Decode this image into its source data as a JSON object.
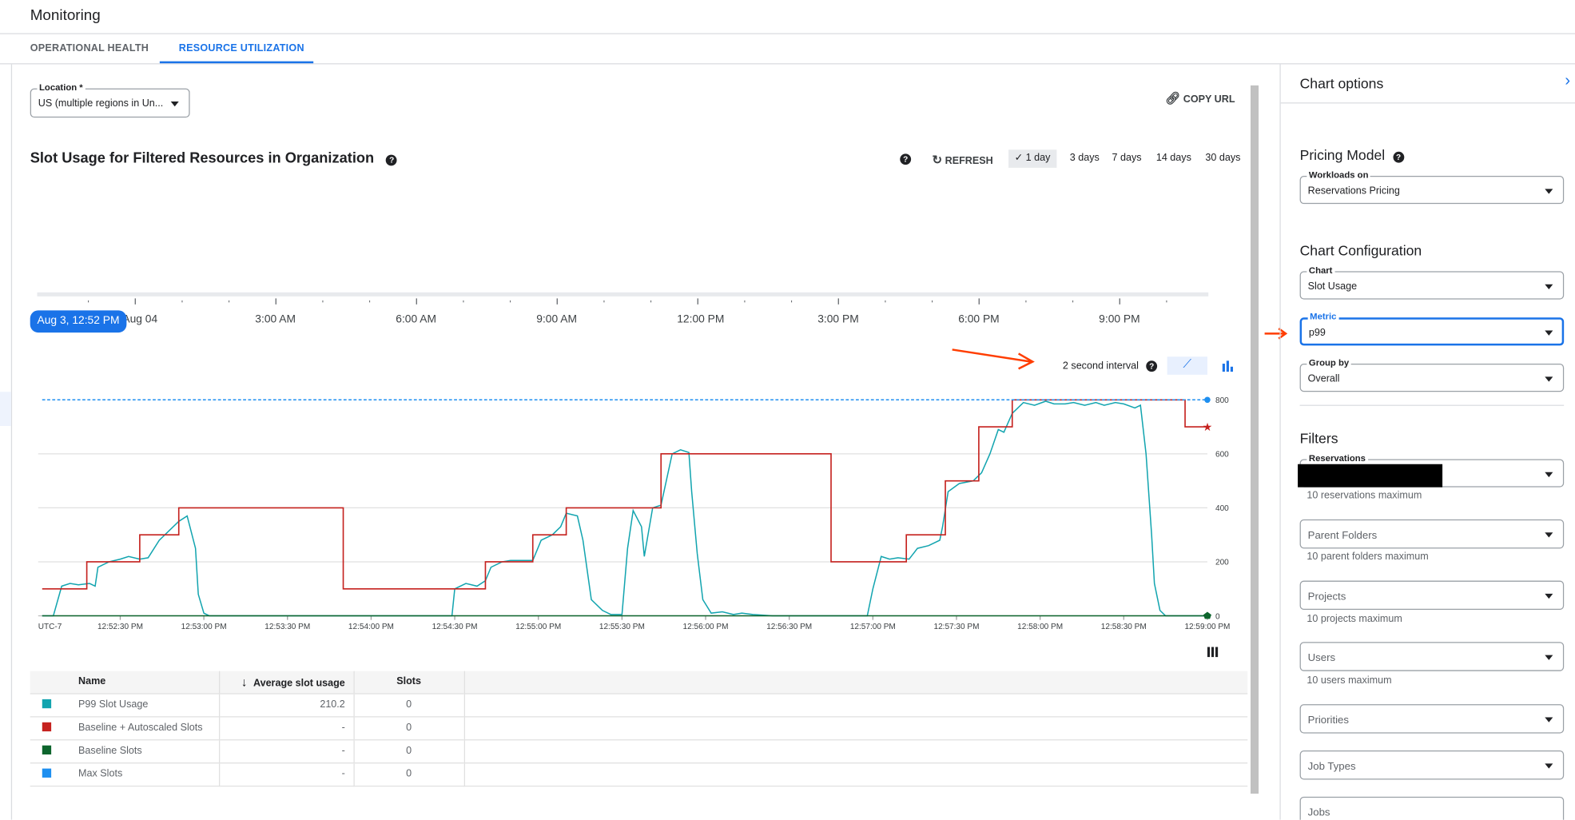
{
  "app": {
    "title": "Monitoring"
  },
  "tabs": [
    {
      "label": "OPERATIONAL HEALTH",
      "active": false
    },
    {
      "label": "RESOURCE UTILIZATION",
      "active": true
    }
  ],
  "location": {
    "label": "Location *",
    "value": "US (multiple regions in Un..."
  },
  "copy_url": "COPY URL",
  "chart_title": "Slot Usage for Filtered Resources in Organization",
  "refresh": "REFRESH",
  "ranges": [
    {
      "label": "1 day",
      "selected": true
    },
    {
      "label": "3 days"
    },
    {
      "label": "7 days"
    },
    {
      "label": "14 days"
    },
    {
      "label": "30 days"
    }
  ],
  "timeline": {
    "cursor": "Aug 3, 12:52 PM",
    "labels": [
      "Aug 04",
      "3:00 AM",
      "6:00 AM",
      "9:00 AM",
      "12:00 PM",
      "3:00 PM",
      "6:00 PM",
      "9:00 PM"
    ]
  },
  "interval": "2 second interval",
  "colors": {
    "accent": "#1a73e8",
    "p99": "#12a4af",
    "autoscaled": "#c5221f",
    "baseline": "#0d652d",
    "max": "#1e8ff0"
  },
  "chart_data": {
    "type": "line",
    "timezone": "UTC-7",
    "x_ticks": [
      "12:52:30 PM",
      "12:53:00 PM",
      "12:53:30 PM",
      "12:54:00 PM",
      "12:54:30 PM",
      "12:55:00 PM",
      "12:55:30 PM",
      "12:56:00 PM",
      "12:56:30 PM",
      "12:57:00 PM",
      "12:57:30 PM",
      "12:58:00 PM",
      "12:58:30 PM",
      "12:59:00 PM"
    ],
    "xlim": [
      "12:52:02",
      "12:59:00"
    ],
    "y_ticks": [
      0,
      200,
      400,
      600,
      800
    ],
    "ylim": [
      0,
      800
    ],
    "y_axis": "right",
    "grid": true,
    "series": [
      {
        "name": "P99 Slot Usage",
        "style": "line",
        "points": [
          [
            "12:52:02",
            0
          ],
          [
            "12:52:06",
            0
          ],
          [
            "12:52:09",
            110
          ],
          [
            "12:52:12",
            120
          ],
          [
            "12:52:15",
            115
          ],
          [
            "12:52:19",
            120
          ],
          [
            "12:52:21",
            110
          ],
          [
            "12:52:22",
            180
          ],
          [
            "12:52:26",
            200
          ],
          [
            "12:52:30",
            210
          ],
          [
            "12:52:33",
            220
          ],
          [
            "12:52:37",
            210
          ],
          [
            "12:52:40",
            215
          ],
          [
            "12:52:44",
            280
          ],
          [
            "12:52:48",
            320
          ],
          [
            "12:52:51",
            350
          ],
          [
            "12:52:54",
            370
          ],
          [
            "12:52:57",
            250
          ],
          [
            "12:52:58",
            80
          ],
          [
            "12:53:00",
            10
          ],
          [
            "12:53:02",
            0
          ],
          [
            "12:54:29",
            0
          ],
          [
            "12:54:30",
            100
          ],
          [
            "12:54:34",
            120
          ],
          [
            "12:54:38",
            110
          ],
          [
            "12:54:41",
            130
          ],
          [
            "12:54:43",
            180
          ],
          [
            "12:54:47",
            200
          ],
          [
            "12:54:50",
            205
          ],
          [
            "12:54:58",
            205
          ],
          [
            "12:55:01",
            280
          ],
          [
            "12:55:05",
            300
          ],
          [
            "12:55:08",
            330
          ],
          [
            "12:55:10",
            380
          ],
          [
            "12:55:14",
            370
          ],
          [
            "12:55:16",
            280
          ],
          [
            "12:55:19",
            60
          ],
          [
            "12:55:23",
            20
          ],
          [
            "12:55:26",
            5
          ],
          [
            "12:55:30",
            5
          ],
          [
            "12:55:32",
            250
          ],
          [
            "12:55:34",
            390
          ],
          [
            "12:55:37",
            330
          ],
          [
            "12:55:38",
            220
          ],
          [
            "12:55:41",
            400
          ],
          [
            "12:55:44",
            410
          ],
          [
            "12:55:48",
            600
          ],
          [
            "12:55:51",
            615
          ],
          [
            "12:55:54",
            605
          ],
          [
            "12:55:55",
            460
          ],
          [
            "12:55:57",
            230
          ],
          [
            "12:55:59",
            60
          ],
          [
            "12:56:02",
            10
          ],
          [
            "12:56:06",
            15
          ],
          [
            "12:56:10",
            5
          ],
          [
            "12:56:13",
            10
          ],
          [
            "12:56:17",
            5
          ],
          [
            "12:56:24",
            0
          ],
          [
            "12:56:58",
            0
          ],
          [
            "12:57:00",
            100
          ],
          [
            "12:57:03",
            220
          ],
          [
            "12:57:06",
            210
          ],
          [
            "12:57:09",
            215
          ],
          [
            "12:57:13",
            210
          ],
          [
            "12:57:16",
            250
          ],
          [
            "12:57:20",
            260
          ],
          [
            "12:57:24",
            280
          ],
          [
            "12:57:25",
            330
          ],
          [
            "12:57:27",
            460
          ],
          [
            "12:57:31",
            490
          ],
          [
            "12:57:36",
            500
          ],
          [
            "12:57:39",
            530
          ],
          [
            "12:57:42",
            600
          ],
          [
            "12:57:45",
            690
          ],
          [
            "12:57:47",
            680
          ],
          [
            "12:57:50",
            750
          ],
          [
            "12:57:54",
            790
          ],
          [
            "12:57:58",
            780
          ],
          [
            "12:58:02",
            795
          ],
          [
            "12:58:05",
            785
          ],
          [
            "12:58:09",
            785
          ],
          [
            "12:58:12",
            790
          ],
          [
            "12:58:16",
            780
          ],
          [
            "12:58:20",
            790
          ],
          [
            "12:58:23",
            780
          ],
          [
            "12:58:27",
            790
          ],
          [
            "12:58:30",
            785
          ],
          [
            "12:58:34",
            770
          ],
          [
            "12:58:36",
            780
          ],
          [
            "12:58:38",
            600
          ],
          [
            "12:58:40",
            300
          ],
          [
            "12:58:41",
            120
          ],
          [
            "12:58:43",
            20
          ],
          [
            "12:58:45",
            0
          ],
          [
            "12:59:00",
            0
          ]
        ]
      },
      {
        "name": "Baseline + Autoscaled Slots",
        "style": "step",
        "points": [
          [
            "12:52:02",
            100
          ],
          [
            "12:52:18",
            200
          ],
          [
            "12:52:37",
            300
          ],
          [
            "12:52:51",
            400
          ],
          [
            "12:53:50",
            100
          ],
          [
            "12:54:41",
            200
          ],
          [
            "12:54:58",
            300
          ],
          [
            "12:55:10",
            400
          ],
          [
            "12:55:44",
            600
          ],
          [
            "12:56:45",
            200
          ],
          [
            "12:57:12",
            300
          ],
          [
            "12:57:26",
            500
          ],
          [
            "12:57:38",
            700
          ],
          [
            "12:57:50",
            800
          ],
          [
            "12:58:52",
            700
          ],
          [
            "12:59:00",
            700
          ]
        ]
      },
      {
        "name": "Baseline Slots",
        "style": "line",
        "points": [
          [
            "12:52:02",
            0
          ],
          [
            "12:59:00",
            0
          ]
        ]
      },
      {
        "name": "Max Slots",
        "style": "dashed",
        "points": [
          [
            "12:52:02",
            800
          ],
          [
            "12:59:00",
            800
          ]
        ]
      }
    ]
  },
  "table": {
    "headers": [
      "Name",
      "Average slot usage",
      "Slots"
    ],
    "rows": [
      {
        "name": "P99 Slot Usage",
        "avg": "210.2",
        "slots": "0",
        "color": "#12a4af"
      },
      {
        "name": "Baseline + Autoscaled Slots",
        "avg": "-",
        "slots": "0",
        "color": "#c5221f"
      },
      {
        "name": "Baseline Slots",
        "avg": "-",
        "slots": "0",
        "color": "#0d652d"
      },
      {
        "name": "Max Slots",
        "avg": "-",
        "slots": "0",
        "color": "#1e8ff0"
      }
    ]
  },
  "panel": {
    "title": "Chart options",
    "pricing": {
      "heading": "Pricing Model",
      "label": "Workloads on",
      "value": "Reservations Pricing"
    },
    "config": {
      "heading": "Chart Configuration",
      "chart_label": "Chart",
      "chart_value": "Slot Usage",
      "metric_label": "Metric",
      "metric_value": "p99",
      "group_label": "Group by",
      "group_value": "Overall"
    },
    "filters": {
      "heading": "Filters",
      "reservations_label": "Reservations",
      "reservations_hint": "10 reservations maximum",
      "parent_folders": "Parent Folders",
      "parent_folders_hint": "10 parent folders maximum",
      "projects": "Projects",
      "projects_hint": "10 projects maximum",
      "users": "Users",
      "users_hint": "10 users maximum",
      "priorities": "Priorities",
      "job_types": "Job Types",
      "jobs": "Jobs"
    }
  }
}
